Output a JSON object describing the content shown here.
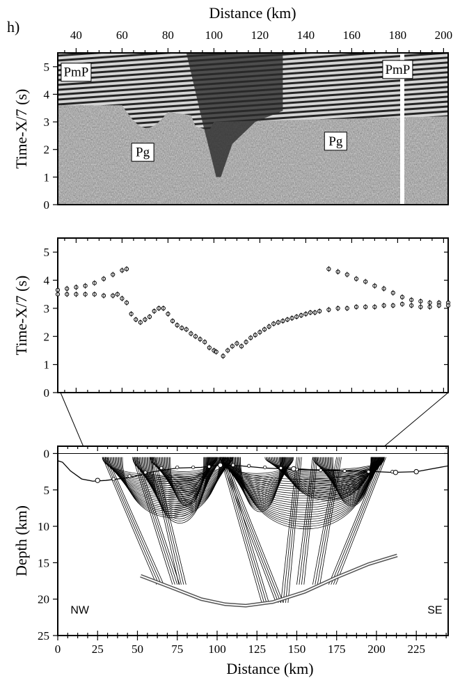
{
  "panel_label": "h)",
  "chart_data": [
    {
      "id": "record-section",
      "type": "heatmap",
      "description_visible": "seismic record section",
      "xlabel": "Distance (km)",
      "ylabel": "Time-X/7 (s)",
      "xlim": [
        32,
        202
      ],
      "ylim": [
        0,
        5.5
      ],
      "xticks": [
        40,
        60,
        80,
        100,
        120,
        140,
        160,
        180,
        200
      ],
      "yticks": [
        0,
        1,
        2,
        3,
        4,
        5
      ],
      "phase_labels": [
        {
          "text": "PmP",
          "x": 40,
          "y": 4.8
        },
        {
          "text": "Pg",
          "x": 69,
          "y": 1.9
        },
        {
          "text": "Pg",
          "x": 153,
          "y": 2.3
        },
        {
          "text": "PmP",
          "x": 180,
          "y": 4.9
        }
      ],
      "gap_at_km": 182
    },
    {
      "id": "picked-times",
      "type": "scatter",
      "ylabel": "Time-X/7 (s)",
      "xlim": [
        32,
        202
      ],
      "ylim": [
        0,
        5.5
      ],
      "yticks": [
        0,
        1,
        2,
        3,
        4,
        5
      ],
      "series": [
        {
          "x": [
            32,
            36,
            40,
            44,
            48,
            52,
            56,
            60,
            62
          ],
          "y": [
            3.65,
            3.7,
            3.75,
            3.8,
            3.9,
            4.05,
            4.2,
            4.35,
            4.4
          ]
        },
        {
          "x": [
            32,
            36,
            40,
            44,
            48,
            52,
            56,
            58,
            60,
            62,
            64,
            66,
            68,
            70,
            72,
            74,
            76,
            78,
            80,
            82,
            84,
            86,
            88,
            90,
            92,
            94,
            96,
            98,
            100,
            101
          ],
          "y": [
            3.5,
            3.5,
            3.5,
            3.5,
            3.5,
            3.45,
            3.45,
            3.5,
            3.35,
            3.2,
            2.8,
            2.6,
            2.5,
            2.6,
            2.7,
            2.9,
            3.0,
            3.0,
            2.8,
            2.55,
            2.4,
            2.3,
            2.25,
            2.1,
            2.0,
            1.9,
            1.8,
            1.6,
            1.5,
            1.45
          ]
        },
        {
          "x": [
            104,
            106,
            108,
            110,
            112,
            114,
            116,
            118,
            120,
            122,
            124,
            126,
            128,
            130,
            132,
            134,
            136,
            138,
            140,
            142,
            144,
            146
          ],
          "y": [
            1.3,
            1.5,
            1.65,
            1.75,
            1.65,
            1.8,
            1.95,
            2.05,
            2.15,
            2.25,
            2.35,
            2.45,
            2.5,
            2.55,
            2.6,
            2.65,
            2.7,
            2.75,
            2.8,
            2.85,
            2.85,
            2.9
          ]
        },
        {
          "x": [
            150,
            154,
            158,
            162,
            166,
            170,
            174,
            178,
            182,
            186,
            190,
            194,
            198,
            202
          ],
          "y": [
            4.4,
            4.3,
            4.2,
            4.05,
            3.95,
            3.8,
            3.7,
            3.55,
            3.4,
            3.3,
            3.25,
            3.2,
            3.2,
            3.2
          ]
        },
        {
          "x": [
            150,
            154,
            158,
            162,
            166,
            170,
            174,
            178,
            182,
            186,
            190,
            194,
            198,
            202
          ],
          "y": [
            2.95,
            3.0,
            3.0,
            3.05,
            3.05,
            3.05,
            3.1,
            3.1,
            3.15,
            3.1,
            3.05,
            3.05,
            3.1,
            3.1
          ]
        }
      ]
    },
    {
      "id": "ray-coverage",
      "type": "line",
      "xlabel": "Distance (km)",
      "ylabel": "Depth (km)",
      "xlim": [
        0,
        245
      ],
      "ylim": [
        25,
        -1
      ],
      "xticks": [
        0,
        25,
        50,
        75,
        100,
        125,
        150,
        175,
        200,
        225
      ],
      "yticks": [
        0,
        5,
        10,
        15,
        20,
        25
      ],
      "region_labels": [
        {
          "text": "NW",
          "x": 8,
          "y": 22
        },
        {
          "text": "SE",
          "x": 232,
          "y": 22
        }
      ],
      "reflector_x": [
        52,
        70,
        90,
        105,
        118,
        135,
        155,
        175,
        195,
        213
      ],
      "reflector_y": [
        16.8,
        18.3,
        20.0,
        20.7,
        20.9,
        20.4,
        19.0,
        17.0,
        15.2,
        14.0
      ],
      "sediment_x": [
        0,
        3,
        8,
        15,
        22,
        30,
        45,
        60,
        75,
        90,
        102,
        115,
        130,
        150,
        170,
        190,
        210,
        225,
        245
      ],
      "sediment_y": [
        1.0,
        1.2,
        2.4,
        3.5,
        3.8,
        3.7,
        3.3,
        2.5,
        2.0,
        1.9,
        1.6,
        1.7,
        2.0,
        2.2,
        2.3,
        2.4,
        2.6,
        2.5,
        1.7
      ],
      "dotted_x": [
        25,
        35,
        45,
        55,
        65,
        75,
        85,
        95,
        102,
        110,
        120,
        130,
        140,
        150,
        165,
        180,
        195,
        210
      ],
      "dotted_y": [
        3.7,
        3.5,
        3.1,
        2.6,
        2.0,
        1.9,
        1.9,
        1.8,
        1.6,
        1.6,
        1.7,
        1.9,
        2.0,
        2.2,
        2.3,
        2.4,
        2.5,
        2.5
      ],
      "station_x": [
        25,
        102,
        148,
        212,
        225
      ],
      "station_y": [
        3.7,
        1.6,
        2.1,
        2.6,
        2.5
      ],
      "ray_fans": [
        {
          "x0": 28,
          "x1": 110,
          "depth": 11
        },
        {
          "x0": 47,
          "x1": 102,
          "depth": 12
        },
        {
          "x0": 58,
          "x1": 100,
          "depth": 9
        },
        {
          "x0": 102,
          "x1": 148,
          "depth": 10
        },
        {
          "x0": 102,
          "x1": 205,
          "depth": 13
        },
        {
          "x0": 130,
          "x1": 205,
          "depth": 8
        },
        {
          "x0": 160,
          "x1": 205,
          "depth": 9
        }
      ]
    }
  ]
}
